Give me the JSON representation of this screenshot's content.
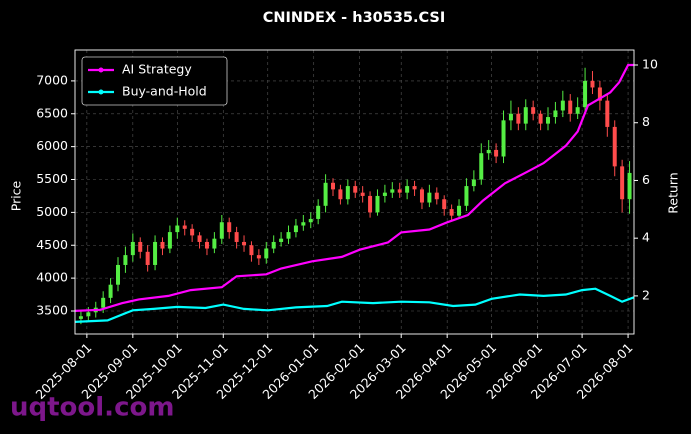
{
  "chart_data": {
    "type": "candlestick",
    "title": "CNINDEX - h30535.CSI",
    "ylabel": "Price",
    "y2label": "Return",
    "watermark": "uqtool.com",
    "up_color": "#55ee44",
    "down_color": "#ff4c4c",
    "grid": true,
    "legend": "upper left",
    "xlim": [
      "2025-07-24",
      "2026-08-05"
    ],
    "xticks": [
      "2025-08-01",
      "2025-09-01",
      "2025-10-01",
      "2025-11-01",
      "2025-12-01",
      "2026-01-01",
      "2026-02-01",
      "2026-03-01",
      "2026-04-01",
      "2026-05-01",
      "2026-06-01",
      "2026-07-01",
      "2026-08-01"
    ],
    "ylim": [
      3150,
      7470
    ],
    "yticks": [
      3500,
      4000,
      4500,
      5000,
      5500,
      6000,
      6500,
      7000
    ],
    "y2lim": [
      0.68,
      10.52
    ],
    "y2ticks": [
      2,
      4,
      6,
      8,
      10
    ],
    "x": [
      "2025-07-28",
      "2025-08-02",
      "2025-08-07",
      "2025-08-12",
      "2025-08-17",
      "2025-08-22",
      "2025-08-27",
      "2025-09-01",
      "2025-09-06",
      "2025-09-11",
      "2025-09-16",
      "2025-09-21",
      "2025-09-26",
      "2025-10-01",
      "2025-10-06",
      "2025-10-11",
      "2025-10-16",
      "2025-10-21",
      "2025-10-26",
      "2025-10-31",
      "2025-11-05",
      "2025-11-10",
      "2025-11-15",
      "2025-11-20",
      "2025-11-25",
      "2025-11-30",
      "2025-12-05",
      "2025-12-10",
      "2025-12-15",
      "2025-12-20",
      "2025-12-25",
      "2025-12-30",
      "2026-01-04",
      "2026-01-09",
      "2026-01-14",
      "2026-01-19",
      "2026-01-24",
      "2026-01-29",
      "2026-02-03",
      "2026-02-08",
      "2026-02-13",
      "2026-02-18",
      "2026-02-23",
      "2026-02-28",
      "2026-03-05",
      "2026-03-10",
      "2026-03-15",
      "2026-03-20",
      "2026-03-25",
      "2026-03-30",
      "2026-04-04",
      "2026-04-09",
      "2026-04-14",
      "2026-04-19",
      "2026-04-24",
      "2026-04-29",
      "2026-05-04",
      "2026-05-09",
      "2026-05-14",
      "2026-05-19",
      "2026-05-24",
      "2026-05-29",
      "2026-06-03",
      "2026-06-08",
      "2026-06-13",
      "2026-06-18",
      "2026-06-23",
      "2026-06-28",
      "2026-07-03",
      "2026-07-08",
      "2026-07-13",
      "2026-07-18",
      "2026-07-23",
      "2026-07-28",
      "2026-08-02"
    ],
    "open": [
      3380,
      3420,
      3480,
      3550,
      3700,
      3900,
      4200,
      4350,
      4550,
      4400,
      4200,
      4550,
      4450,
      4700,
      4800,
      4750,
      4650,
      4550,
      4450,
      4600,
      4850,
      4700,
      4550,
      4500,
      4350,
      4300,
      4450,
      4550,
      4600,
      4700,
      4800,
      4850,
      4900,
      5100,
      5450,
      5350,
      5200,
      5400,
      5300,
      5250,
      5000,
      5250,
      5300,
      5350,
      5300,
      5400,
      5350,
      5150,
      5300,
      5200,
      5050,
      4950,
      5100,
      5400,
      5500,
      5900,
      5950,
      5850,
      6400,
      6500,
      6350,
      6600,
      6500,
      6350,
      6450,
      6550,
      6700,
      6500,
      6600,
      7000,
      6900,
      6700,
      6300,
      5700,
      5200
    ],
    "close": [
      3420,
      3480,
      3550,
      3700,
      3900,
      4200,
      4350,
      4550,
      4400,
      4200,
      4550,
      4450,
      4700,
      4800,
      4750,
      4650,
      4550,
      4450,
      4600,
      4850,
      4700,
      4550,
      4500,
      4350,
      4300,
      4450,
      4550,
      4600,
      4700,
      4800,
      4850,
      4900,
      5100,
      5450,
      5350,
      5200,
      5400,
      5300,
      5250,
      5000,
      5250,
      5300,
      5350,
      5300,
      5400,
      5350,
      5150,
      5300,
      5200,
      5050,
      4950,
      5100,
      5400,
      5500,
      5900,
      5950,
      5850,
      6400,
      6500,
      6350,
      6600,
      6500,
      6350,
      6450,
      6550,
      6700,
      6500,
      6600,
      7000,
      6900,
      6700,
      6300,
      5700,
      5200,
      5600
    ],
    "high": [
      3500,
      3560,
      3640,
      3800,
      4000,
      4320,
      4480,
      4680,
      4620,
      4500,
      4650,
      4620,
      4800,
      4920,
      4880,
      4820,
      4700,
      4600,
      4700,
      4960,
      4920,
      4780,
      4650,
      4560,
      4440,
      4550,
      4650,
      4700,
      4800,
      4900,
      4960,
      5000,
      5200,
      5580,
      5520,
      5420,
      5500,
      5480,
      5400,
      5320,
      5350,
      5420,
      5460,
      5450,
      5500,
      5480,
      5380,
      5420,
      5380,
      5260,
      5120,
      5200,
      5520,
      5640,
      6050,
      6100,
      6050,
      6550,
      6700,
      6600,
      6720,
      6700,
      6550,
      6600,
      6680,
      6850,
      6800,
      6750,
      7200,
      7150,
      7000,
      6800,
      6400,
      5800,
      5780
    ],
    "low": [
      3300,
      3350,
      3400,
      3470,
      3620,
      3800,
      4080,
      4250,
      4300,
      4100,
      4120,
      4350,
      4380,
      4600,
      4650,
      4550,
      4450,
      4350,
      4380,
      4520,
      4600,
      4450,
      4400,
      4250,
      4200,
      4220,
      4380,
      4480,
      4520,
      4620,
      4720,
      4760,
      4820,
      5000,
      5250,
      5120,
      5120,
      5220,
      5150,
      4920,
      4950,
      5150,
      5220,
      5220,
      5200,
      5250,
      5050,
      5080,
      5120,
      4950,
      4880,
      4900,
      5020,
      5320,
      5420,
      5800,
      5750,
      5750,
      6250,
      6250,
      6250,
      6400,
      6250,
      6250,
      6350,
      6450,
      6380,
      6420,
      6500,
      6800,
      6550,
      6150,
      5550,
      5000,
      4980
    ],
    "series": [
      {
        "name": "AI Strategy",
        "color": "#ff00ff",
        "axis": "y2",
        "x": [
          "2025-07-24",
          "2025-08-10",
          "2025-08-25",
          "2025-09-05",
          "2025-09-25",
          "2025-10-10",
          "2025-10-31",
          "2025-11-10",
          "2025-11-30",
          "2025-12-10",
          "2025-12-31",
          "2026-01-20",
          "2026-02-01",
          "2026-02-20",
          "2026-03-01",
          "2026-03-20",
          "2026-04-01",
          "2026-04-15",
          "2026-04-25",
          "2026-05-10",
          "2026-05-25",
          "2026-06-05",
          "2026-06-20",
          "2026-06-28",
          "2026-07-05",
          "2026-07-20",
          "2026-07-26",
          "2026-08-01",
          "2026-08-05"
        ],
        "values": [
          1.48,
          1.52,
          1.75,
          1.88,
          2.0,
          2.2,
          2.3,
          2.68,
          2.75,
          2.95,
          3.2,
          3.35,
          3.6,
          3.85,
          4.2,
          4.3,
          4.55,
          4.8,
          5.3,
          5.9,
          6.3,
          6.6,
          7.2,
          7.7,
          8.6,
          9.05,
          9.4,
          10.0,
          10.0
        ]
      },
      {
        "name": "Buy-and-Hold",
        "color": "#00ffff",
        "axis": "y2",
        "x": [
          "2025-07-24",
          "2025-08-15",
          "2025-09-01",
          "2025-09-15",
          "2025-10-01",
          "2025-10-20",
          "2025-11-01",
          "2025-11-15",
          "2025-12-01",
          "2025-12-20",
          "2026-01-10",
          "2026-01-20",
          "2026-02-10",
          "2026-03-01",
          "2026-03-20",
          "2026-04-05",
          "2026-04-20",
          "2026-05-01",
          "2026-05-20",
          "2026-06-05",
          "2026-06-20",
          "2026-07-01",
          "2026-07-10",
          "2026-07-20",
          "2026-07-28",
          "2026-08-05"
        ],
        "values": [
          1.1,
          1.15,
          1.5,
          1.55,
          1.62,
          1.58,
          1.7,
          1.55,
          1.5,
          1.6,
          1.65,
          1.8,
          1.75,
          1.8,
          1.78,
          1.65,
          1.7,
          1.9,
          2.05,
          2.0,
          2.05,
          2.2,
          2.25,
          2.0,
          1.8,
          1.95
        ]
      }
    ]
  }
}
